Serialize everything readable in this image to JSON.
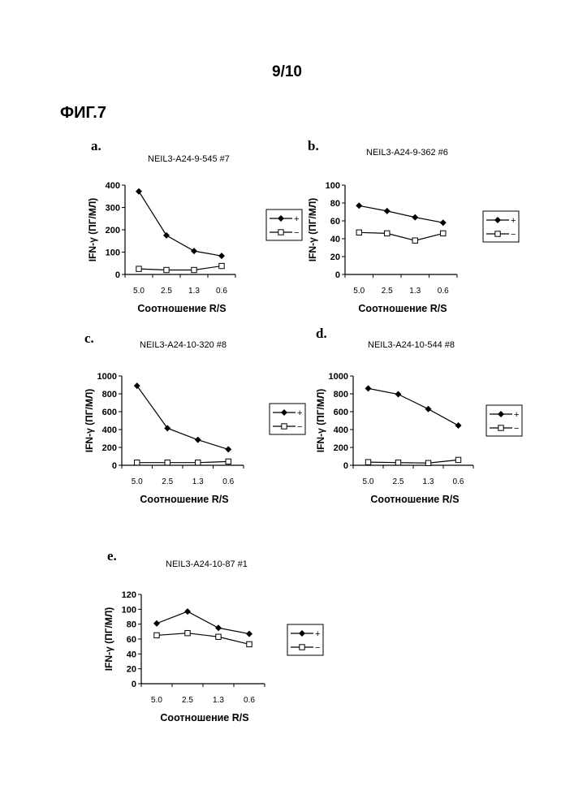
{
  "page_number": "9/10",
  "figure_label": "ФИГ.7",
  "colors": {
    "ink": "#000000",
    "open_marker_fill": "#ffffff"
  },
  "chart_data": [
    {
      "type": "line",
      "panel": "a.",
      "title": "NEIL3-A24-9-545 #7",
      "xlabel": "Соотношение R/S",
      "ylabel": "IFN-γ (ПГ/МЛ)",
      "categories": [
        "5.0",
        "2.5",
        "1.3",
        "0.6"
      ],
      "ylim": [
        0,
        400
      ],
      "yticks": [
        "0",
        "100",
        "200",
        "300",
        "400"
      ],
      "series": [
        {
          "name": "+",
          "marker": "filled-diamond",
          "values": [
            372,
            175,
            105,
            83
          ]
        },
        {
          "name": "−",
          "marker": "open-square",
          "values": [
            25,
            20,
            20,
            38
          ]
        }
      ],
      "legend_position": "right",
      "grid": false
    },
    {
      "type": "line",
      "panel": "b.",
      "title": "NEIL3-A24-9-362 #6",
      "xlabel": "Соотношение R/S",
      "ylabel": "IFN-γ (ПГ/МЛ)",
      "categories": [
        "5.0",
        "2.5",
        "1.3",
        "0.6"
      ],
      "ylim": [
        0,
        100
      ],
      "yticks": [
        "0",
        "20",
        "40",
        "60",
        "80",
        "100"
      ],
      "series": [
        {
          "name": "+",
          "marker": "filled-diamond",
          "values": [
            77,
            71,
            64,
            58
          ]
        },
        {
          "name": "−",
          "marker": "open-square",
          "values": [
            47,
            46,
            38,
            46
          ]
        }
      ],
      "legend_position": "right",
      "grid": false
    },
    {
      "type": "line",
      "panel": "c.",
      "title": "NEIL3-A24-10-320 #8",
      "xlabel": "Соотношение R/S",
      "ylabel": "IFN-γ (ПГ/МЛ)",
      "categories": [
        "5.0",
        "2.5",
        "1.3",
        "0.6"
      ],
      "ylim": [
        0,
        1000
      ],
      "yticks": [
        "0",
        "200",
        "400",
        "600",
        "800",
        "1000"
      ],
      "series": [
        {
          "name": "+",
          "marker": "filled-diamond",
          "values": [
            890,
            415,
            285,
            178
          ]
        },
        {
          "name": "−",
          "marker": "open-square",
          "values": [
            30,
            30,
            30,
            42
          ]
        }
      ],
      "legend_position": "right",
      "grid": false
    },
    {
      "type": "line",
      "panel": "d.",
      "title": "NEIL3-A24-10-544 #8",
      "xlabel": "Соотношение R/S",
      "ylabel": "IFN-γ (ПГ/МЛ)",
      "categories": [
        "5.0",
        "2.5",
        "1.3",
        "0.6"
      ],
      "ylim": [
        0,
        1000
      ],
      "yticks": [
        "0",
        "200",
        "400",
        "600",
        "800",
        "1000"
      ],
      "series": [
        {
          "name": "+",
          "marker": "filled-diamond",
          "values": [
            860,
            795,
            630,
            445
          ]
        },
        {
          "name": "−",
          "marker": "open-square",
          "values": [
            35,
            30,
            25,
            60
          ]
        }
      ],
      "legend_position": "right",
      "grid": false
    },
    {
      "type": "line",
      "panel": "e.",
      "title": "NEIL3-A24-10-87 #1",
      "xlabel": "Соотношение R/S",
      "ylabel": "IFN-γ (ПГ/МЛ)",
      "categories": [
        "5.0",
        "2.5",
        "1.3",
        "0.6"
      ],
      "ylim": [
        0,
        120
      ],
      "yticks": [
        "0",
        "20",
        "40",
        "60",
        "80",
        "100",
        "120"
      ],
      "series": [
        {
          "name": "+",
          "marker": "filled-diamond",
          "values": [
            81,
            97,
            75,
            67
          ]
        },
        {
          "name": "−",
          "marker": "open-square",
          "values": [
            65,
            68,
            63,
            53
          ]
        }
      ],
      "legend_position": "right",
      "grid": false
    }
  ]
}
